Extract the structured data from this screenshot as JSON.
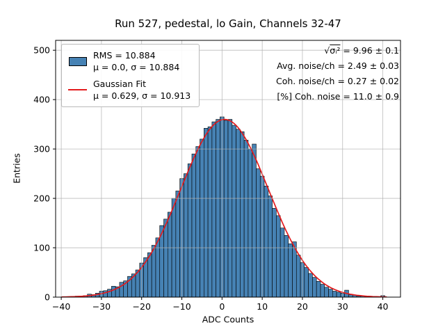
{
  "title": "Run 527, pedestal, lo Gain, Channels 32-47",
  "xlabel": "ADC Counts",
  "ylabel": "Entries",
  "legend": {
    "hist_line1": "RMS = 10.884",
    "hist_line2": "μ = 0.0, σ = 10.884",
    "fit_line1": "Gaussian Fit",
    "fit_line2": "μ = 0.629, σ = 10.913"
  },
  "annotations": {
    "sqrt_sym": "√",
    "sqrt_radicand": "σᵢ²",
    "line1_rest": " = 9.96 ± 0.1",
    "line2": "Avg. noise/ch = 2.49 ± 0.03",
    "line3": "Coh. noise/ch = 0.27 ± 0.02",
    "line4": "[%] Coh. noise = 11.0 ± 0.9"
  },
  "chart_data": {
    "type": "bar",
    "subtype": "histogram",
    "title": "Run 527, pedestal, lo Gain, Channels 32-47",
    "xlabel": "ADC Counts",
    "ylabel": "Entries",
    "bin_width": 1,
    "first_bin_center": -37,
    "values": [
      1,
      2,
      2,
      3,
      6,
      5,
      8,
      12,
      13,
      16,
      22,
      21,
      30,
      33,
      42,
      47,
      55,
      69,
      80,
      90,
      105,
      120,
      145,
      158,
      172,
      200,
      215,
      240,
      250,
      270,
      290,
      305,
      320,
      342,
      345,
      355,
      360,
      365,
      358,
      360,
      348,
      340,
      335,
      318,
      300,
      310,
      260,
      245,
      225,
      205,
      180,
      165,
      140,
      125,
      108,
      112,
      85,
      70,
      60,
      48,
      40,
      32,
      26,
      20,
      16,
      12,
      10,
      8,
      14,
      5,
      4,
      2,
      2,
      1,
      1,
      0,
      0,
      3
    ],
    "hist_stats": {
      "rms": 10.884,
      "mu": 0.0,
      "sigma": 10.884
    },
    "fit": {
      "type": "gaussian",
      "mu": 0.629,
      "sigma": 10.913,
      "amplitude": 360,
      "label": "Gaussian Fit"
    },
    "xlim": [
      -41.4,
      44.4
    ],
    "ylim": [
      0,
      520
    ],
    "xticks": [
      -40,
      -30,
      -20,
      -10,
      0,
      10,
      20,
      30,
      40
    ],
    "yticks": [
      0,
      100,
      200,
      300,
      400,
      500
    ],
    "grid": true,
    "legend_position": "upper-left",
    "annotation_values": {
      "sqrt_sigma_sq": "9.96 ± 0.1",
      "avg_noise_per_ch": "2.49 ± 0.03",
      "coh_noise_per_ch": "0.27 ± 0.02",
      "pct_coh_noise": "11.0 ± 0.9"
    },
    "colors": {
      "hist_fill": "#4682b4",
      "hist_edge": "#000000",
      "fit_line": "#e31a1c",
      "grid": "#b0b0b0",
      "frame": "#000000"
    }
  }
}
